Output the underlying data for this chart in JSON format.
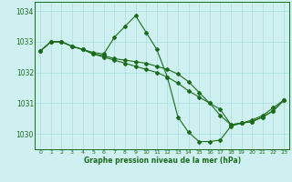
{
  "title": "Graphe pression niveau de la mer (hPa)",
  "bg_color": "#cff0f0",
  "grid_color": "#aadddd",
  "line_color": "#1a6b1a",
  "text_color": "#1a6b1a",
  "xlim": [
    -0.5,
    23.5
  ],
  "ylim": [
    1029.5,
    1034.3
  ],
  "yticks": [
    1030,
    1031,
    1032,
    1033,
    1034
  ],
  "xticks": [
    0,
    1,
    2,
    3,
    4,
    5,
    6,
    7,
    8,
    9,
    10,
    11,
    12,
    13,
    14,
    15,
    16,
    17,
    18,
    19,
    20,
    21,
    22,
    23
  ],
  "line1_x": [
    0,
    1,
    2,
    3,
    4,
    5,
    6,
    7,
    8,
    9,
    10,
    11,
    12,
    13,
    14,
    15,
    16,
    17,
    18,
    19,
    20,
    21,
    22,
    23
  ],
  "line1_y": [
    1032.7,
    1033.0,
    1033.0,
    1032.85,
    1032.75,
    1032.65,
    1032.6,
    1033.15,
    1033.5,
    1033.85,
    1033.3,
    1032.75,
    1031.85,
    1030.55,
    1030.05,
    1029.75,
    1029.75,
    1029.8,
    1030.25,
    1030.35,
    1030.45,
    1030.6,
    1030.85,
    1031.1
  ],
  "line2_x": [
    0,
    1,
    2,
    3,
    4,
    5,
    6,
    7,
    8,
    9,
    10,
    11,
    12,
    13,
    14,
    15,
    16,
    17,
    18,
    19,
    20,
    21,
    22,
    23
  ],
  "line2_y": [
    1032.7,
    1033.0,
    1033.0,
    1032.85,
    1032.75,
    1032.6,
    1032.5,
    1032.4,
    1032.3,
    1032.2,
    1032.1,
    1032.0,
    1031.85,
    1031.65,
    1031.4,
    1031.2,
    1031.0,
    1030.8,
    1030.3,
    1030.35,
    1030.4,
    1030.55,
    1030.75,
    1031.1
  ],
  "line3_x": [
    0,
    1,
    2,
    3,
    4,
    5,
    6,
    7,
    8,
    9,
    10,
    11,
    12,
    13,
    14,
    15,
    16,
    17,
    18,
    19,
    20,
    21,
    22,
    23
  ],
  "line3_y": [
    1032.7,
    1033.0,
    1033.0,
    1032.85,
    1032.75,
    1032.6,
    1032.55,
    1032.45,
    1032.4,
    1032.35,
    1032.3,
    1032.2,
    1032.1,
    1031.95,
    1031.7,
    1031.35,
    1031.0,
    1030.6,
    1030.3,
    1030.35,
    1030.4,
    1030.55,
    1030.75,
    1031.1
  ]
}
